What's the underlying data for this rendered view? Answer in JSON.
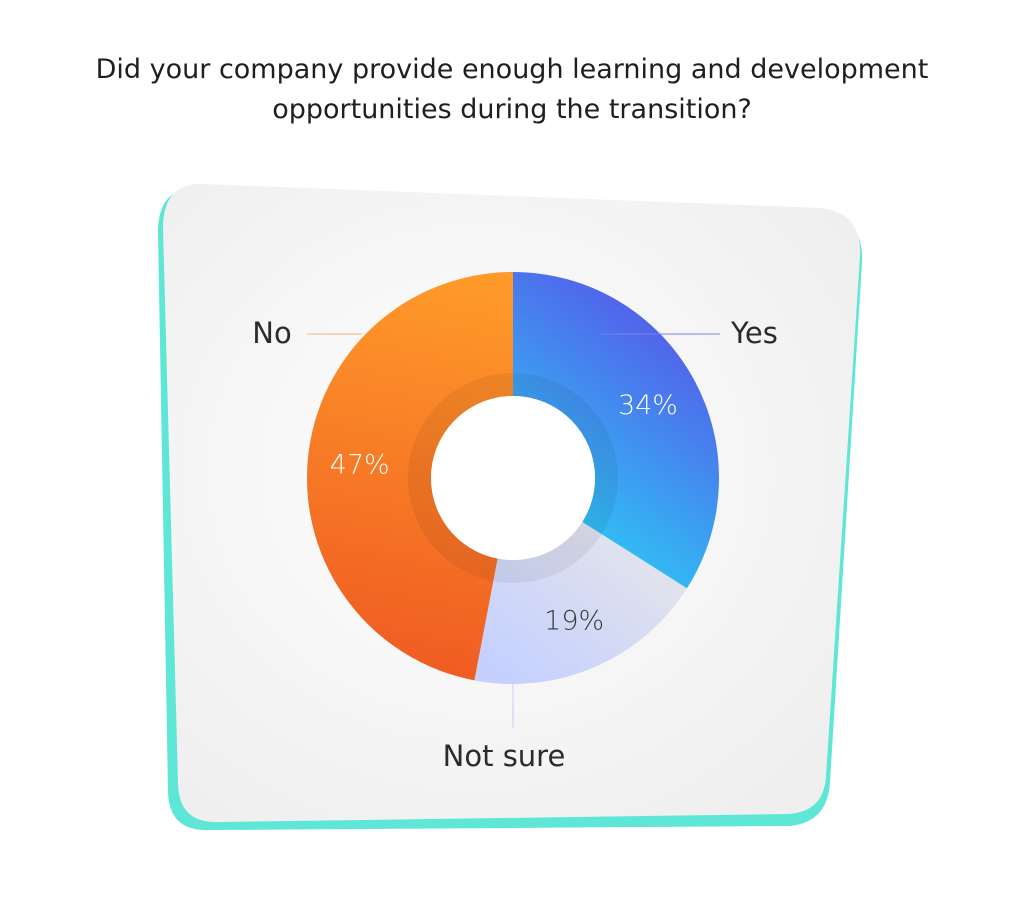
{
  "title_lines": [
    "Did your company provide enough learning and development",
    "opportunities during the transition?"
  ],
  "chart_data": {
    "type": "pie",
    "variant": "donut",
    "categories": [
      "Yes",
      "Not sure",
      "No"
    ],
    "values": [
      34,
      19,
      47
    ],
    "value_labels": [
      "34%",
      "19%",
      "47%"
    ],
    "colors": {
      "Yes": [
        "#5a4be8",
        "#2ec6f5"
      ],
      "Not sure": [
        "#e6e6e9",
        "#c5d0ff"
      ],
      "No": [
        "#ff9a2a",
        "#ef5a22"
      ]
    },
    "label_text_colors": {
      "Yes": "#ffffff",
      "Not sure": "#3a3a3a",
      "No": "#ffffff"
    },
    "start": "top, clockwise",
    "legend": "callout labels"
  },
  "colors": {
    "card": "#f3f3f3",
    "card_accent": "#5ee6d6",
    "title": "#1f1f1f"
  }
}
